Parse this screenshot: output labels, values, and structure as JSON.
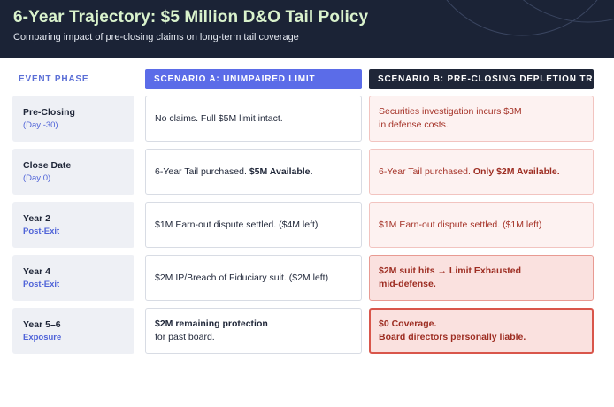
{
  "header": {
    "title": "6-Year Trajectory: $5 Million D&O Tail Policy",
    "subtitle": "Comparing impact of pre-closing claims on long-term tail coverage"
  },
  "columns": {
    "phase": "EVENT PHASE",
    "scenario_a": "SCENARIO A: UNIMPAIRED LIMIT",
    "scenario_b": "SCENARIO B: PRE-CLOSING DEPLETION TRAP"
  },
  "rows": [
    {
      "phase": "Pre-Closing",
      "phase_sub": "(Day -30)",
      "a_text": "No claims. Full $5M limit intact.",
      "b_line1": "Securities investigation incurs $3M",
      "b_line2": "in defense costs."
    },
    {
      "phase": "Close Date",
      "phase_sub": "(Day 0)",
      "a_text": "6-Year Tail purchased. ",
      "a_bold": "$5M Available.",
      "b_text": "6-Year Tail purchased. ",
      "b_bold": "Only $2M Available."
    },
    {
      "phase": "Year 2",
      "phase_sub": "Post-Exit",
      "a_text": "$1M Earn-out dispute settled. ($4M left)",
      "b_text": "$1M Earn-out dispute settled. ($1M left)"
    },
    {
      "phase": "Year 4",
      "phase_sub": "Post-Exit",
      "a_text": "$2M IP/Breach of Fiduciary suit. ($2M left)",
      "b_line1": "$2M suit hits → Limit Exhausted",
      "b_line2": "mid-defense."
    },
    {
      "phase": "Year 5–6",
      "phase_sub": "Exposure",
      "a_line1": "$2M remaining protection",
      "a_line2": "for past board.",
      "b_line1": "$0 Coverage.",
      "b_line2": "Board directors personally liable."
    }
  ],
  "colors": {
    "header_bg": "#1b2336",
    "title": "#d9f2cc",
    "accent_blue": "#5b6ce8",
    "dark_head": "#1f2638",
    "danger_text": "#a53328",
    "danger_border": "#d9564b"
  }
}
